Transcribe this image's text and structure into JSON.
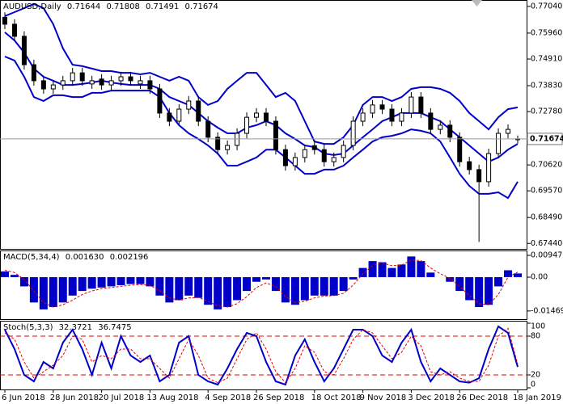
{
  "chart_data": {
    "type": "candlestick",
    "title": "AUDUSD,Daily",
    "categories": [
      "6 Jun 2018",
      null,
      null,
      null,
      null,
      "28 Jun 2018",
      null,
      null,
      null,
      null,
      "20 Jul 2018",
      null,
      null,
      null,
      null,
      "13 Aug 2018",
      null,
      null,
      null,
      null,
      null,
      "4 Sep 2018",
      null,
      null,
      null,
      null,
      "26 Sep 2018",
      null,
      null,
      null,
      null,
      null,
      "18 Oct 2018",
      null,
      null,
      null,
      null,
      "9 Nov 2018",
      null,
      null,
      null,
      null,
      "3 Dec 2018",
      null,
      null,
      null,
      null,
      "26 Dec 2018",
      null,
      null,
      null,
      null,
      null,
      "18 Jan 2019"
    ],
    "open": [
      0.766,
      0.7632,
      0.7583,
      0.7468,
      0.7403,
      0.737,
      0.7386,
      0.7403,
      0.7435,
      0.739,
      0.741,
      0.7386,
      0.7403,
      0.7419,
      0.739,
      0.7403,
      0.737,
      0.7272,
      0.7239,
      0.7288,
      0.7321,
      0.7239,
      0.7174,
      0.7124,
      0.7141,
      0.719,
      0.7255,
      0.7272,
      0.7239,
      0.7124,
      0.7059,
      0.7092,
      0.714,
      0.7124,
      0.7075,
      0.7092,
      0.7141,
      0.7239,
      0.7272,
      0.7305,
      0.7288,
      0.7239,
      0.7272,
      0.7337,
      0.7272,
      0.7206,
      0.7223,
      0.7174,
      0.7075,
      0.7043,
      0.6994,
      0.7108,
      0.719,
      0.71644
    ],
    "high": [
      0.768,
      0.7652,
      0.7603,
      0.7488,
      0.7423,
      0.7406,
      0.7423,
      0.7455,
      0.7455,
      0.7423,
      0.743,
      0.7423,
      0.7439,
      0.7439,
      0.7423,
      0.7423,
      0.739,
      0.7292,
      0.7308,
      0.7341,
      0.7341,
      0.7259,
      0.7194,
      0.7161,
      0.721,
      0.7275,
      0.7292,
      0.7292,
      0.7259,
      0.7144,
      0.7112,
      0.7144,
      0.716,
      0.7144,
      0.7112,
      0.7161,
      0.7259,
      0.7292,
      0.7325,
      0.7325,
      0.7308,
      0.7292,
      0.7357,
      0.7357,
      0.7292,
      0.7243,
      0.7243,
      0.7194,
      0.7095,
      0.7063,
      0.7128,
      0.721,
      0.7226,
      0.71808
    ],
    "low": [
      0.7612,
      0.7563,
      0.7448,
      0.7383,
      0.735,
      0.735,
      0.7366,
      0.7383,
      0.7383,
      0.737,
      0.7366,
      0.7366,
      0.7383,
      0.7383,
      0.737,
      0.735,
      0.7252,
      0.7219,
      0.7219,
      0.7268,
      0.7219,
      0.7154,
      0.7104,
      0.7104,
      0.7121,
      0.717,
      0.7235,
      0.7219,
      0.7104,
      0.7039,
      0.7039,
      0.7072,
      0.7104,
      0.7055,
      0.7055,
      0.7072,
      0.7121,
      0.7219,
      0.7252,
      0.7268,
      0.7219,
      0.7219,
      0.7252,
      0.7252,
      0.7186,
      0.7186,
      0.7154,
      0.7055,
      0.7023,
      0.675,
      0.6974,
      0.7088,
      0.717,
      0.71491
    ],
    "close": [
      0.7632,
      0.7583,
      0.7468,
      0.7403,
      0.737,
      0.7386,
      0.7403,
      0.7435,
      0.7403,
      0.7403,
      0.7386,
      0.7403,
      0.7419,
      0.7403,
      0.7403,
      0.737,
      0.7272,
      0.7239,
      0.7288,
      0.7321,
      0.7239,
      0.7174,
      0.7124,
      0.7141,
      0.719,
      0.7255,
      0.7272,
      0.7239,
      0.7124,
      0.7059,
      0.7092,
      0.7124,
      0.7124,
      0.7075,
      0.7092,
      0.7141,
      0.7239,
      0.7272,
      0.7305,
      0.7288,
      0.7239,
      0.7272,
      0.7337,
      0.7272,
      0.7206,
      0.7223,
      0.7174,
      0.7075,
      0.7043,
      0.6994,
      0.7108,
      0.719,
      0.7206,
      0.71674
    ],
    "bands": [
      {
        "color": "#0000c8",
        "values": [
          0.7665,
          0.7681,
          0.7697,
          0.7714,
          0.7697,
          0.7632,
          0.7534,
          0.7468,
          0.7462,
          0.7452,
          0.7442,
          0.7442,
          0.7435,
          0.7435,
          0.7429,
          0.7435,
          0.7419,
          0.7403,
          0.7419,
          0.7403,
          0.7337,
          0.7305,
          0.7321,
          0.737,
          0.7403,
          0.7435,
          0.7435,
          0.7386,
          0.7337,
          0.7354,
          0.7321,
          0.7239,
          0.7157,
          0.7147,
          0.7147,
          0.7174,
          0.7223,
          0.7305,
          0.7337,
          0.7337,
          0.7321,
          0.7337,
          0.737,
          0.7377,
          0.7377,
          0.737,
          0.7354,
          0.7321,
          0.7272,
          0.7239,
          0.7206,
          0.7255,
          0.7288,
          0.7295
        ]
      },
      {
        "color": "#0000c8",
        "values": [
          0.7599,
          0.7566,
          0.7517,
          0.7452,
          0.7419,
          0.7403,
          0.7386,
          0.7386,
          0.739,
          0.7396,
          0.7403,
          0.7396,
          0.739,
          0.7386,
          0.7386,
          0.7386,
          0.737,
          0.7337,
          0.7321,
          0.7305,
          0.7272,
          0.7239,
          0.7213,
          0.719,
          0.719,
          0.7213,
          0.7223,
          0.7239,
          0.7223,
          0.719,
          0.7167,
          0.7141,
          0.7134,
          0.7108,
          0.7102,
          0.7108,
          0.7141,
          0.7174,
          0.7206,
          0.7239,
          0.7255,
          0.7272,
          0.7272,
          0.7272,
          0.7255,
          0.7239,
          0.7206,
          0.7174,
          0.7141,
          0.7108,
          0.7075,
          0.7092,
          0.7124,
          0.7147
        ]
      },
      {
        "color": "#0000c8",
        "values": [
          0.7501,
          0.7485,
          0.7419,
          0.7337,
          0.7321,
          0.7344,
          0.7344,
          0.7337,
          0.7337,
          0.7354,
          0.7354,
          0.7363,
          0.7363,
          0.7363,
          0.7363,
          0.7363,
          0.7337,
          0.7272,
          0.7223,
          0.719,
          0.7167,
          0.7141,
          0.7108,
          0.7059,
          0.7059,
          0.7075,
          0.7092,
          0.7124,
          0.7124,
          0.7092,
          0.7059,
          0.7026,
          0.7026,
          0.7043,
          0.7043,
          0.7059,
          0.7092,
          0.7124,
          0.7157,
          0.7174,
          0.718,
          0.719,
          0.7206,
          0.72,
          0.719,
          0.7157,
          0.7092,
          0.7026,
          0.6977,
          0.6945,
          0.6945,
          0.6951,
          0.6928,
          0.6994
        ]
      }
    ],
    "ylim": [
      0.6722,
      0.773
    ],
    "yticks": [
      {
        "value": 0.7704,
        "label": "0.77040"
      },
      {
        "value": 0.7596,
        "label": "0.75960"
      },
      {
        "value": 0.7491,
        "label": "0.74910"
      },
      {
        "value": 0.7383,
        "label": "0.73830"
      },
      {
        "value": 0.7278,
        "label": "0.72780"
      },
      {
        "value": 0.7062,
        "label": "0.70620"
      },
      {
        "value": 0.6957,
        "label": "0.69570"
      },
      {
        "value": 0.6849,
        "label": "0.68490"
      },
      {
        "value": 0.6744,
        "label": "0.67440"
      }
    ],
    "macd": {
      "title": "MACD(5,34,4)",
      "color": "#0000c8",
      "signal_color": "#e00000",
      "values": [
        0.0025,
        0.001,
        -0.004,
        -0.011,
        -0.014,
        -0.013,
        -0.011,
        -0.008,
        -0.006,
        -0.005,
        -0.0045,
        -0.004,
        -0.0035,
        -0.003,
        -0.003,
        -0.004,
        -0.008,
        -0.011,
        -0.01,
        -0.008,
        -0.009,
        -0.012,
        -0.014,
        -0.013,
        -0.01,
        -0.006,
        -0.002,
        -0.001,
        -0.006,
        -0.011,
        -0.012,
        -0.01,
        -0.008,
        -0.008,
        -0.008,
        -0.006,
        -0.001,
        0.004,
        0.007,
        0.0065,
        0.004,
        0.0055,
        0.009,
        0.007,
        0.002,
        0.0,
        -0.002,
        -0.006,
        -0.01,
        -0.013,
        -0.012,
        -0.004,
        0.003,
        0.00163
      ],
      "value_labels": {
        "53": "0.001630"
      },
      "signal": [
        0.003,
        0.002,
        -0.001,
        -0.006,
        -0.011,
        -0.013,
        -0.012,
        -0.01,
        -0.0075,
        -0.006,
        -0.005,
        -0.0045,
        -0.004,
        -0.0035,
        -0.0032,
        -0.0035,
        -0.006,
        -0.009,
        -0.01,
        -0.009,
        -0.0088,
        -0.0105,
        -0.0125,
        -0.013,
        -0.0115,
        -0.0085,
        -0.0045,
        -0.0025,
        -0.004,
        -0.0085,
        -0.011,
        -0.0105,
        -0.009,
        -0.0082,
        -0.008,
        -0.007,
        -0.0035,
        0.0015,
        0.005,
        0.0062,
        0.005,
        0.0052,
        0.0075,
        0.0072,
        0.004,
        0.0015,
        -0.0005,
        -0.004,
        -0.008,
        -0.0115,
        -0.012,
        -0.0075,
        0.0,
        0.002196
      ],
      "ylim": [
        -0.0186,
        0.0116
      ],
      "yticks": [
        0.009471,
        {
          "value": 0,
          "label": "0.00"
        },
        -0.014695
      ]
    },
    "stoch": {
      "title": "Stoch(5,3,3)",
      "color": "#0000c8",
      "signal_color": "#e00000",
      "values": [
        90,
        60,
        20,
        10,
        40,
        30,
        70,
        90,
        60,
        20,
        70,
        30,
        80,
        50,
        40,
        50,
        10,
        20,
        70,
        80,
        20,
        10,
        5,
        30,
        60,
        85,
        80,
        40,
        10,
        5,
        50,
        75,
        40,
        10,
        30,
        60,
        90,
        90,
        80,
        50,
        40,
        70,
        90,
        40,
        10,
        30,
        20,
        10,
        8,
        15,
        60,
        95,
        85,
        32.3721
      ],
      "signal": [
        85,
        75,
        40,
        15,
        25,
        35,
        50,
        80,
        75,
        40,
        50,
        45,
        60,
        60,
        45,
        45,
        30,
        15,
        45,
        75,
        50,
        15,
        8,
        15,
        45,
        75,
        85,
        60,
        25,
        8,
        30,
        65,
        55,
        25,
        20,
        45,
        75,
        90,
        85,
        65,
        45,
        55,
        80,
        65,
        25,
        20,
        25,
        15,
        10,
        10,
        35,
        80,
        92,
        36.7475
      ],
      "levels": [
        20,
        80
      ],
      "ylim": [
        0,
        100
      ],
      "yticks": [
        100,
        80,
        20,
        0
      ]
    }
  }
}
